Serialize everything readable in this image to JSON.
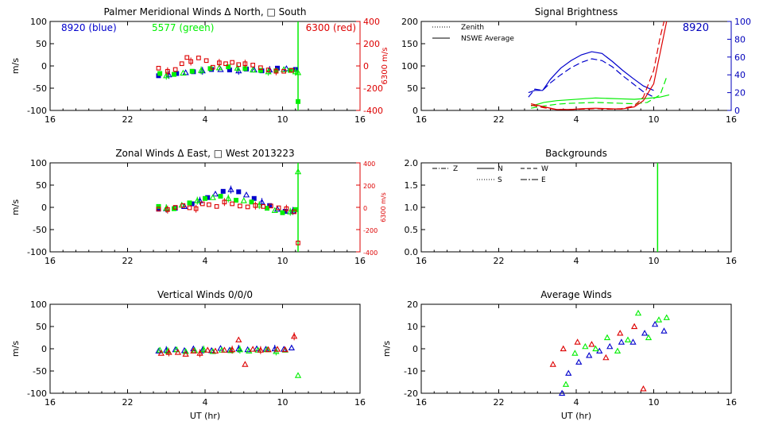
{
  "figure": {
    "colors": {
      "axis": "#000000",
      "blue": "#0000cc",
      "green": "#00ee00",
      "red": "#dd0000",
      "right_blue": "#0000bb"
    }
  },
  "chart_data": [
    {
      "id": "meridional",
      "type": "scatter",
      "title": "Palmer Meridional Winds Δ North, □ South",
      "xlabel": "",
      "ylabel": "m/s",
      "right_label": "6300 m/s",
      "xticks": [
        "16",
        "22",
        "4",
        "10",
        "16"
      ],
      "yticks": [
        "100",
        "50",
        "0",
        "-50",
        "-100"
      ],
      "right_ticks": [
        "400",
        "200",
        "0",
        "-200",
        "-400"
      ],
      "legend": [
        {
          "text": "8920 (blue)",
          "color": "blue"
        },
        {
          "text": "5577 (green)",
          "color": "green"
        },
        {
          "text": "6300 (red)",
          "color": "red"
        }
      ],
      "xlim": [
        16,
        40
      ],
      "ylim": [
        -100,
        100
      ],
      "series": [
        {
          "name": "8920",
          "color": "blue",
          "x": [
            24.4,
            25.2,
            25.8,
            26.5,
            27.1,
            27.8,
            28.5,
            29.2,
            29.9,
            30.6,
            31.2,
            31.8,
            32.4,
            33.0,
            33.6,
            34.3,
            35.0
          ],
          "y": [
            -22,
            -20,
            -17,
            -15,
            -13,
            -11,
            -8,
            -8,
            -9,
            -11,
            -7,
            -9,
            -11,
            -9,
            -5,
            -6,
            -8
          ]
        },
        {
          "name": "5577",
          "color": "green",
          "x": [
            24.5,
            25.0,
            25.6,
            26.3,
            27.0,
            27.7,
            28.4,
            29.1,
            29.8,
            30.5,
            31.1,
            31.7,
            32.3,
            32.9,
            33.5,
            34.1,
            34.6,
            35.0,
            35.2,
            35.2
          ],
          "y": [
            -17,
            -22,
            -19,
            -16,
            -12,
            -10,
            -6,
            -4,
            -2,
            -5,
            -6,
            -9,
            -10,
            -13,
            -11,
            -8,
            -10,
            -13,
            -80,
            -15
          ]
        },
        {
          "name": "6300",
          "color": "red",
          "x": [
            24.4,
            25.1,
            25.7,
            26.2,
            26.6,
            26.9,
            27.5,
            28.1,
            28.6,
            29.1,
            29.6,
            30.1,
            30.6,
            31.1,
            31.7,
            32.3,
            32.9,
            33.5,
            34.1,
            34.7
          ],
          "y": [
            -5,
            -12,
            -8,
            5,
            19,
            10,
            18,
            12,
            -3,
            7,
            5,
            8,
            3,
            5,
            2,
            -4,
            -9,
            -12,
            -12,
            -10
          ]
        }
      ],
      "vline": {
        "x": 35.2,
        "color": "green",
        "ylim": [
          -100,
          100
        ]
      }
    },
    {
      "id": "brightness",
      "type": "line",
      "title": "Signal Brightness",
      "xlabel": "",
      "ylabel": "",
      "right_label": "",
      "xticks": [
        "16",
        "22",
        "4",
        "10",
        "16"
      ],
      "yticks": [
        "200",
        "150",
        "100",
        "50",
        "0"
      ],
      "right_ticks": [
        "100",
        "80",
        "60",
        "40",
        "20",
        "0"
      ],
      "right_tag": "8920",
      "legend": [
        {
          "text": "Zenith",
          "style": "dotted"
        },
        {
          "text": "NSWE Average",
          "style": "solid"
        }
      ],
      "xlim": [
        16,
        40
      ],
      "ylim": [
        0,
        200
      ],
      "series": [
        {
          "name": "8920 NSWE Average",
          "color": "blue",
          "dash": "none",
          "x": [
            24.3,
            24.8,
            25.4,
            26.0,
            26.8,
            27.6,
            28.4,
            29.2,
            30.0,
            30.8,
            31.6,
            32.4,
            33.2,
            34.0
          ],
          "y": [
            40,
            45,
            45,
            70,
            95,
            112,
            125,
            132,
            128,
            110,
            90,
            72,
            55,
            45
          ]
        },
        {
          "name": "8920 Zenith",
          "color": "blue",
          "dash": "8,4",
          "x": [
            24.3,
            24.8,
            25.4,
            26.0,
            26.8,
            27.6,
            28.4,
            29.2,
            30.0,
            30.8,
            31.6,
            32.4,
            33.2,
            34.0
          ],
          "y": [
            30,
            48,
            45,
            62,
            80,
            96,
            108,
            116,
            112,
            98,
            78,
            60,
            42,
            30
          ]
        },
        {
          "name": "5577 NSWE Average",
          "color": "green",
          "dash": "none",
          "x": [
            24.5,
            25.5,
            26.5,
            27.5,
            28.5,
            29.5,
            30.5,
            31.5,
            32.5,
            33.5,
            34.5,
            35.2
          ],
          "y": [
            10,
            18,
            22,
            24,
            26,
            28,
            27,
            26,
            25,
            27,
            30,
            35
          ]
        },
        {
          "name": "5577 Zenith",
          "color": "green",
          "dash": "8,4",
          "x": [
            24.5,
            25.5,
            26.5,
            27.5,
            28.5,
            29.5,
            30.5,
            31.5,
            32.5,
            33.5,
            34.5,
            35.0
          ],
          "y": [
            5,
            10,
            14,
            16,
            17,
            18,
            17,
            16,
            15,
            18,
            35,
            75
          ]
        },
        {
          "name": "6300 NSWE Average",
          "color": "red",
          "dash": "none",
          "x": [
            24.5,
            25.5,
            26.5,
            27.5,
            28.5,
            29.5,
            30.5,
            31.5,
            32.5,
            33.2,
            34.0,
            34.5,
            35.0
          ],
          "y": [
            15,
            8,
            2,
            2,
            4,
            5,
            4,
            3,
            8,
            22,
            60,
            130,
            200
          ]
        },
        {
          "name": "6300 Zenith",
          "color": "red",
          "dash": "8,4",
          "x": [
            24.5,
            25.5,
            26.5,
            27.5,
            28.5,
            29.5,
            30.5,
            31.5,
            32.5,
            33.2,
            34.0,
            34.5,
            34.8
          ],
          "y": [
            12,
            6,
            2,
            2,
            3,
            4,
            3,
            4,
            10,
            30,
            90,
            165,
            200
          ]
        }
      ]
    },
    {
      "id": "zonal",
      "type": "scatter",
      "title": "Zonal Winds Δ East, □ West 2013223",
      "xlabel": "",
      "ylabel": "m/s",
      "right_label": "6300 m/s",
      "xticks": [
        "16",
        "22",
        "4",
        "10",
        "16"
      ],
      "yticks": [
        "100",
        "50",
        "0",
        "-50",
        "-100"
      ],
      "right_ticks": [
        "400",
        "200",
        "0",
        "-200",
        "-400"
      ],
      "xlim": [
        16,
        40
      ],
      "ylim": [
        -100,
        100
      ],
      "series": [
        {
          "name": "8920",
          "color": "blue",
          "x": [
            24.4,
            25.0,
            25.7,
            26.4,
            27.0,
            27.6,
            28.2,
            28.8,
            29.4,
            30.0,
            30.6,
            31.2,
            31.8,
            32.4,
            33.0,
            33.6,
            34.2,
            34.8
          ],
          "y": [
            -4,
            -3,
            -2,
            2,
            8,
            15,
            22,
            30,
            36,
            40,
            35,
            28,
            20,
            12,
            4,
            -4,
            -9,
            -8
          ]
        },
        {
          "name": "5577",
          "color": "green",
          "x": [
            24.4,
            25.0,
            25.6,
            26.2,
            26.8,
            27.4,
            28.0,
            28.6,
            29.2,
            29.8,
            30.4,
            31.0,
            31.6,
            32.2,
            32.8,
            33.4,
            34.0,
            34.6,
            35.0,
            35.2
          ],
          "y": [
            2,
            -2,
            -3,
            5,
            10,
            15,
            20,
            22,
            25,
            20,
            16,
            15,
            12,
            5,
            -2,
            -7,
            -12,
            -10,
            -5,
            80
          ]
        },
        {
          "name": "6300",
          "color": "red",
          "x": [
            24.4,
            25.1,
            25.7,
            26.3,
            26.8,
            27.3,
            27.8,
            28.3,
            28.9,
            29.5,
            30.1,
            30.7,
            31.3,
            31.9,
            32.5,
            33.1,
            33.7,
            34.3,
            34.9,
            35.2
          ],
          "y": [
            -4,
            -5,
            0,
            4,
            -1,
            -3,
            8,
            6,
            2,
            12,
            8,
            3,
            1,
            4,
            2,
            3,
            -1,
            -3,
            -10,
            -80
          ]
        }
      ],
      "vline": {
        "x": 35.2,
        "color": "green",
        "ylim": [
          -100,
          100
        ]
      }
    },
    {
      "id": "backgrounds",
      "type": "line",
      "title": "Backgrounds",
      "xlabel": "",
      "ylabel": "",
      "right_label": "",
      "xticks": [
        "16",
        "22",
        "4",
        "10",
        "16"
      ],
      "yticks": [
        "2.0",
        "1.5",
        "1.0",
        "0.5",
        "0.0"
      ],
      "legend": [
        {
          "text": "Z",
          "style": "dashdot"
        },
        {
          "text": "N",
          "style": "solid"
        },
        {
          "text": "W",
          "style": "dashed"
        },
        {
          "text": "S",
          "style": "dotted"
        },
        {
          "text": "E",
          "style": "longdashdot"
        }
      ],
      "xlim": [
        16,
        40
      ],
      "ylim": [
        0,
        2
      ],
      "series": [],
      "vline": {
        "x": 34.3,
        "color": "green",
        "ylim": [
          0,
          2
        ]
      }
    },
    {
      "id": "vertical",
      "type": "scatter",
      "title": "Vertical Winds 0/0/0",
      "xlabel": "UT (hr)",
      "ylabel": "m/s",
      "right_label": "",
      "xticks": [
        "16",
        "22",
        "4",
        "10",
        "16"
      ],
      "yticks": [
        "100",
        "50",
        "0",
        "-50",
        "-100"
      ],
      "xlim": [
        16,
        40
      ],
      "ylim": [
        -100,
        100
      ],
      "series": [
        {
          "name": "8920",
          "color": "blue",
          "x": [
            24.4,
            25.0,
            25.7,
            26.4,
            27.1,
            27.8,
            28.5,
            29.2,
            29.9,
            30.6,
            31.3,
            32.0,
            32.7,
            33.4,
            34.1,
            34.7
          ],
          "y": [
            -5,
            -3,
            -2,
            -4,
            0,
            -3,
            -4,
            1,
            -3,
            0,
            -2,
            0,
            -1,
            0,
            -1,
            2
          ]
        },
        {
          "name": "5577",
          "color": "green",
          "x": [
            24.5,
            25.1,
            25.8,
            26.5,
            27.2,
            27.9,
            28.6,
            29.3,
            30.0,
            30.7,
            31.4,
            32.1,
            32.8,
            33.5,
            34.2,
            35.2
          ],
          "y": [
            -3,
            -5,
            -2,
            -6,
            -4,
            -2,
            -6,
            -3,
            -4,
            -2,
            -5,
            -3,
            -2,
            -6,
            -3,
            -60
          ]
        },
        {
          "name": "6300",
          "color": "red",
          "x": [
            24.6,
            25.2,
            25.9,
            26.5,
            27.1,
            27.6,
            28.2,
            28.8,
            29.5,
            30.1,
            30.6,
            31.1,
            31.7,
            32.3,
            32.9,
            33.6,
            34.2,
            34.9
          ],
          "y": [
            -10,
            -8,
            -8,
            -12,
            -5,
            -10,
            -3,
            -5,
            -3,
            -2,
            20,
            -35,
            -1,
            -3,
            -2,
            -1,
            -2,
            28
          ]
        }
      ]
    },
    {
      "id": "average",
      "type": "scatter",
      "title": "Average Winds",
      "xlabel": "UT (hr)",
      "ylabel": "m/s",
      "right_label": "",
      "xticks": [
        "16",
        "22",
        "4",
        "10",
        "16"
      ],
      "yticks": [
        "20",
        "10",
        "0",
        "-10",
        "-20"
      ],
      "xlim": [
        16,
        40
      ],
      "ylim": [
        -20,
        20
      ],
      "series": [
        {
          "name": "8920",
          "color": "blue",
          "x": [
            26.9,
            27.4,
            28.2,
            29.0,
            29.8,
            30.6,
            31.5,
            32.4,
            33.3,
            34.1,
            34.8
          ],
          "y": [
            -20,
            -11,
            -6,
            -3,
            -1,
            1,
            3,
            3,
            7,
            11,
            8
          ]
        },
        {
          "name": "5577",
          "color": "green",
          "x": [
            27.2,
            27.9,
            28.7,
            29.5,
            30.4,
            31.2,
            32.0,
            32.8,
            33.6,
            34.4,
            35.0
          ],
          "y": [
            -16,
            -2,
            1,
            0,
            5,
            -1,
            4,
            16,
            5,
            13,
            14
          ]
        },
        {
          "name": "6300",
          "color": "red",
          "x": [
            26.2,
            27.0,
            28.1,
            29.2,
            30.3,
            31.4,
            32.5,
            33.2
          ],
          "y": [
            -7,
            0,
            3,
            2,
            -4,
            7,
            10,
            -18
          ]
        }
      ]
    }
  ]
}
